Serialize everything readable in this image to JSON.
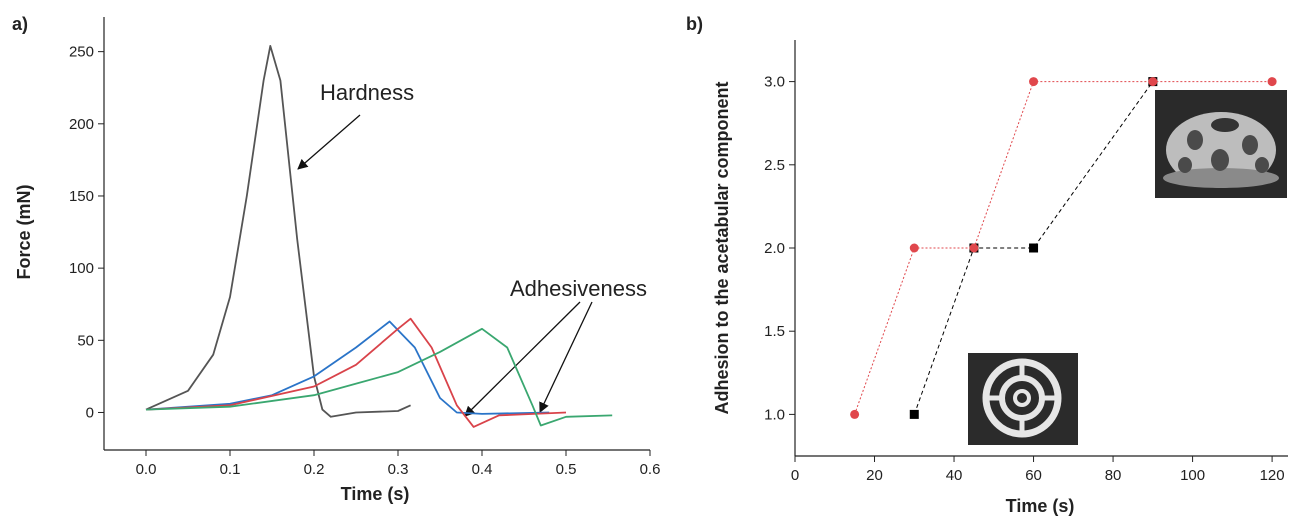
{
  "chart_data": [
    {
      "type": "line",
      "label": "a)",
      "x_label": "Time (s)",
      "y_label": "Force (mN)",
      "xlim": [
        -0.05,
        0.6
      ],
      "ylim": [
        -26,
        274
      ],
      "xticks": [
        {
          "value": 0,
          "label": "0.0"
        },
        0.1,
        0.2,
        0.3,
        0.4,
        0.5,
        0.6
      ],
      "yticks": [
        0,
        50,
        100,
        150,
        200,
        250
      ],
      "annotations": [
        "Hardness",
        "Adhesiveness"
      ],
      "series": [
        {
          "color": "#555555",
          "x": [
            0,
            0.05,
            0.08,
            0.1,
            0.12,
            0.14,
            0.148,
            0.16,
            0.18,
            0.2,
            0.21,
            0.22,
            0.25,
            0.3,
            0.315
          ],
          "values": [
            2,
            15,
            40,
            80,
            150,
            230,
            254,
            230,
            120,
            25,
            2,
            -3,
            0,
            1,
            5
          ]
        },
        {
          "color": "#2a74c8",
          "x": [
            0,
            0.1,
            0.15,
            0.2,
            0.25,
            0.29,
            0.32,
            0.35,
            0.37,
            0.4,
            0.48
          ],
          "values": [
            2,
            6,
            12,
            25,
            45,
            63,
            45,
            10,
            0,
            -1,
            0
          ]
        },
        {
          "color": "#d9434a",
          "x": [
            0,
            0.1,
            0.2,
            0.25,
            0.3,
            0.315,
            0.34,
            0.37,
            0.39,
            0.42,
            0.5
          ],
          "values": [
            2,
            5,
            18,
            33,
            58,
            65,
            45,
            5,
            -10,
            -2,
            0
          ]
        },
        {
          "color": "#3aa770",
          "x": [
            0,
            0.1,
            0.2,
            0.3,
            0.35,
            0.4,
            0.43,
            0.46,
            0.47,
            0.5,
            0.555
          ],
          "values": [
            2,
            4,
            12,
            28,
            42,
            58,
            45,
            5,
            -9,
            -3,
            -2
          ]
        }
      ]
    },
    {
      "type": "line",
      "label": "b)",
      "x_label": "Time (s)",
      "y_label": "Adhesion to the acetabular component",
      "xlim": [
        0,
        124
      ],
      "ylim": [
        0.75,
        3.25
      ],
      "xticks": [
        0,
        20,
        40,
        60,
        80,
        100,
        120
      ],
      "yticks": [
        {
          "value": 1,
          "label": "1.0"
        },
        1.5,
        {
          "value": 2,
          "label": "2.0"
        },
        2.5,
        {
          "value": 3,
          "label": "3.0"
        }
      ],
      "series": [
        {
          "color": "#000000",
          "marker": "square",
          "dash": "4,3",
          "x": [
            30,
            45,
            60,
            90
          ],
          "values": [
            1,
            2,
            2,
            3
          ]
        },
        {
          "color": "#e0474c",
          "marker": "circle",
          "dash": "2,2",
          "x": [
            15,
            30,
            45,
            60,
            90,
            120
          ],
          "values": [
            1,
            2,
            2,
            3,
            3,
            3
          ]
        }
      ]
    }
  ]
}
